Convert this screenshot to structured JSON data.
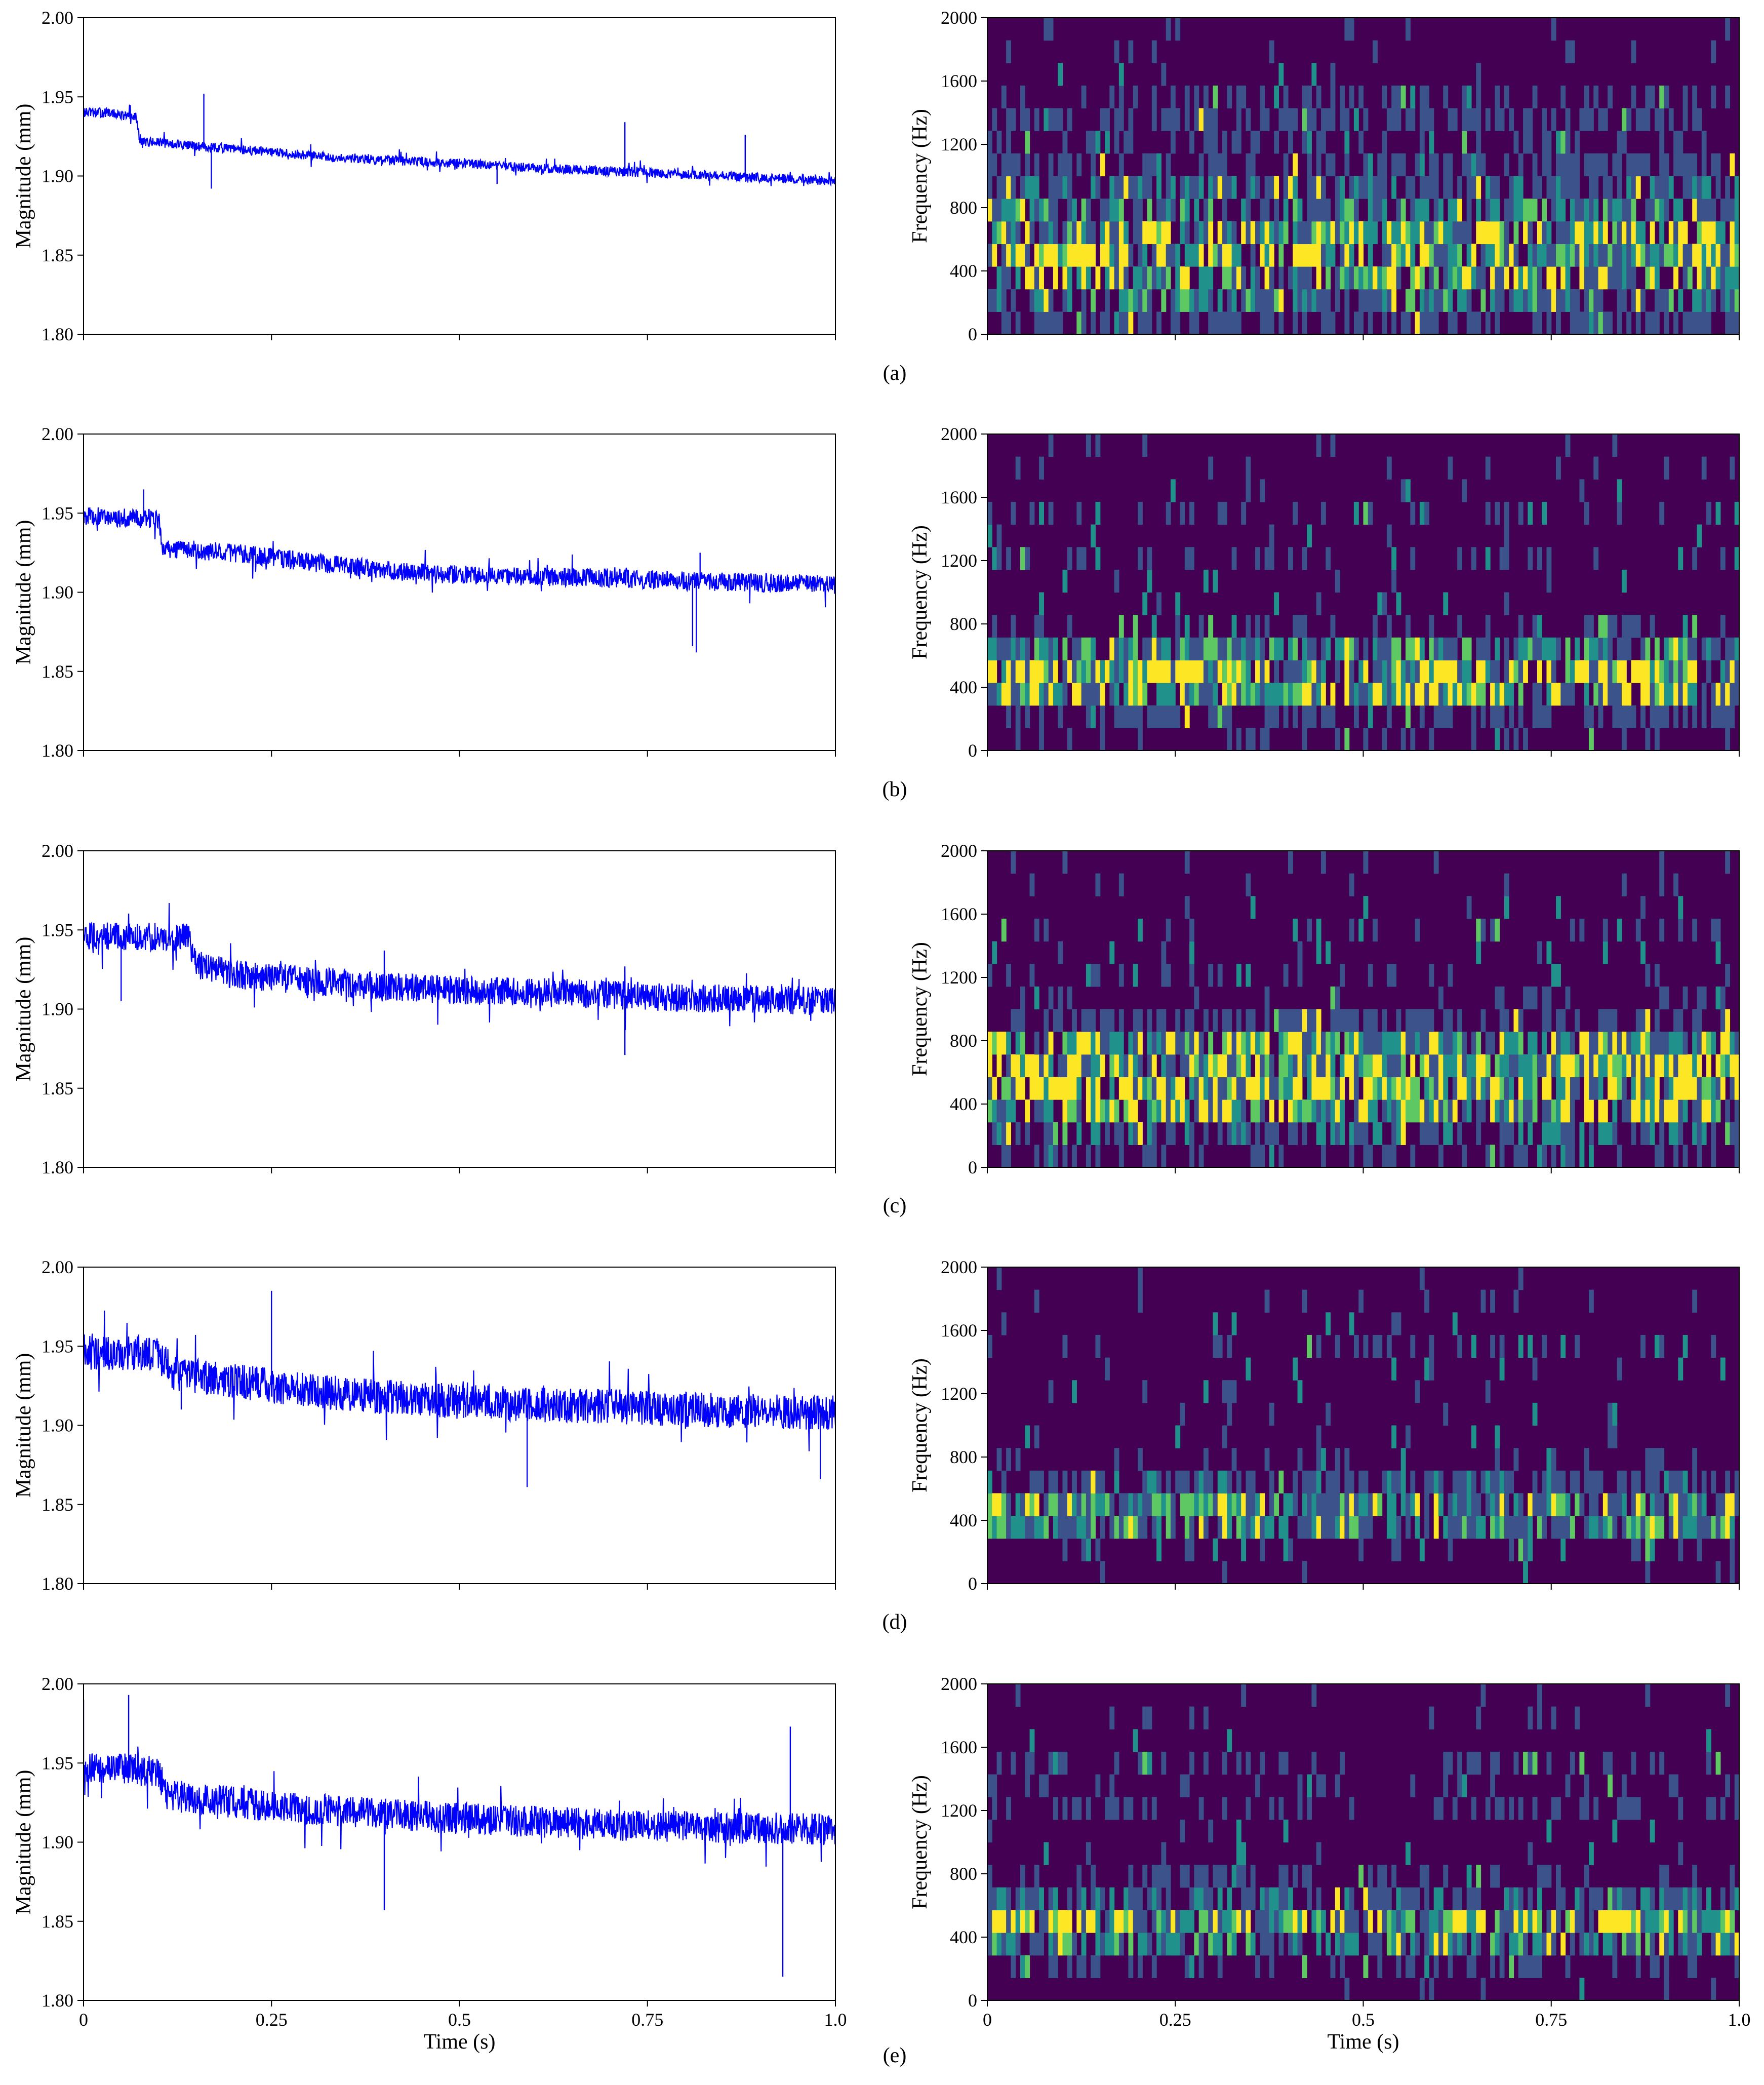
{
  "figure": {
    "panels": [
      "(a)",
      "(b)",
      "(c)",
      "(d)",
      "(e)"
    ]
  },
  "chart_data": [
    {
      "type": "line",
      "panel": "(a)",
      "ylabel": "Magnitude (mm)",
      "xlabel": "",
      "xlim": [
        0,
        1.0
      ],
      "ylim": [
        1.8,
        2.0
      ],
      "yticks": [
        "1.80",
        "1.85",
        "1.90",
        "1.95",
        "2.00"
      ],
      "xticks": [],
      "color": "#0000ff",
      "grid": false,
      "series": [
        {
          "x": [
            0,
            0.03,
            0.07,
            0.075,
            0.1,
            0.2,
            0.3,
            0.4,
            0.5,
            0.6,
            0.7,
            0.8,
            0.9,
            1.0
          ],
          "values": [
            1.94,
            1.94,
            1.937,
            1.922,
            1.921,
            1.917,
            1.913,
            1.91,
            1.908,
            1.905,
            1.903,
            1.901,
            1.899,
            1.897
          ],
          "noise": 0.003,
          "spikes": [
            [
              0.16,
              1.952
            ],
            [
              0.17,
              1.892
            ],
            [
              0.55,
              1.895
            ],
            [
              0.72,
              1.934
            ],
            [
              0.88,
              1.926
            ]
          ]
        }
      ]
    },
    {
      "type": "heatmap",
      "panel": "(a)",
      "ylabel": "Frequency (Hz)",
      "xlabel": "",
      "xlim": [
        0,
        1.0
      ],
      "ylim": [
        0,
        2000
      ],
      "yticks": [
        "0",
        "400",
        "800",
        "1200",
        "1600",
        "2000"
      ],
      "xticks": [],
      "colormap": [
        "#440154",
        "#3b528b",
        "#21918c",
        "#5ec962",
        "#fde725"
      ],
      "frequency_bins": 14,
      "time_bins": 160,
      "band_intensity": [
        0.45,
        0.65,
        0.8,
        0.9,
        0.85,
        0.7,
        0.55,
        0.45,
        0.35,
        0.45,
        0.35,
        0.25,
        0.1,
        0.05
      ]
    },
    {
      "type": "line",
      "panel": "(b)",
      "ylabel": "Magnitude (mm)",
      "xlabel": "",
      "xlim": [
        0,
        1.0
      ],
      "ylim": [
        1.8,
        2.0
      ],
      "yticks": [
        "1.80",
        "1.85",
        "1.90",
        "1.95",
        "2.00"
      ],
      "xticks": [],
      "color": "#0000ff",
      "grid": false,
      "series": [
        {
          "x": [
            0,
            0.05,
            0.1,
            0.105,
            0.2,
            0.3,
            0.4,
            0.5,
            0.6,
            0.7,
            0.8,
            0.9,
            1.0
          ],
          "values": [
            1.948,
            1.947,
            1.946,
            1.928,
            1.925,
            1.919,
            1.914,
            1.911,
            1.91,
            1.909,
            1.907,
            1.906,
            1.905
          ],
          "noise": 0.006,
          "spikes": [
            [
              0.81,
              1.866
            ],
            [
              0.82,
              1.925
            ],
            [
              0.815,
              1.862
            ],
            [
              0.08,
              1.965
            ]
          ]
        }
      ]
    },
    {
      "type": "heatmap",
      "panel": "(b)",
      "ylabel": "Frequency (Hz)",
      "xlabel": "",
      "xlim": [
        0,
        1.0
      ],
      "ylim": [
        0,
        2000
      ],
      "yticks": [
        "0",
        "400",
        "800",
        "1200",
        "1600",
        "2000"
      ],
      "xticks": [],
      "colormap": [
        "#440154",
        "#3b528b",
        "#21918c",
        "#5ec962",
        "#fde725"
      ],
      "frequency_bins": 14,
      "time_bins": 160,
      "band_intensity": [
        0.3,
        0.45,
        0.85,
        0.9,
        0.7,
        0.35,
        0.25,
        0.2,
        0.3,
        0.25,
        0.3,
        0.25,
        0.05,
        0.03
      ]
    },
    {
      "type": "line",
      "panel": "(c)",
      "ylabel": "Magnitude (mm)",
      "xlabel": "",
      "xlim": [
        0,
        1.0
      ],
      "ylim": [
        1.8,
        2.0
      ],
      "yticks": [
        "1.80",
        "1.85",
        "1.90",
        "1.95",
        "2.00"
      ],
      "xticks": [],
      "color": "#0000ff",
      "grid": false,
      "series": [
        {
          "x": [
            0,
            0.05,
            0.14,
            0.15,
            0.2,
            0.3,
            0.4,
            0.5,
            0.6,
            0.7,
            0.8,
            0.9,
            1.0
          ],
          "values": [
            1.946,
            1.946,
            1.945,
            1.928,
            1.922,
            1.918,
            1.914,
            1.912,
            1.911,
            1.909,
            1.907,
            1.906,
            1.905
          ],
          "noise": 0.009,
          "spikes": [
            [
              0.05,
              1.905
            ],
            [
              0.72,
              1.871
            ],
            [
              0.4,
              1.937
            ]
          ]
        }
      ]
    },
    {
      "type": "heatmap",
      "panel": "(c)",
      "ylabel": "Frequency (Hz)",
      "xlabel": "",
      "xlim": [
        0,
        1.0
      ],
      "ylim": [
        0,
        2000
      ],
      "yticks": [
        "0",
        "400",
        "800",
        "1200",
        "1600",
        "2000"
      ],
      "xticks": [],
      "colormap": [
        "#440154",
        "#3b528b",
        "#21918c",
        "#5ec962",
        "#fde725"
      ],
      "frequency_bins": 14,
      "time_bins": 160,
      "band_intensity": [
        0.35,
        0.55,
        0.85,
        0.95,
        0.95,
        0.85,
        0.45,
        0.3,
        0.3,
        0.25,
        0.3,
        0.25,
        0.05,
        0.03
      ]
    },
    {
      "type": "line",
      "panel": "(d)",
      "ylabel": "Magnitude (mm)",
      "xlabel": "",
      "xlim": [
        0,
        1.0
      ],
      "ylim": [
        1.8,
        2.0
      ],
      "yticks": [
        "1.80",
        "1.85",
        "1.90",
        "1.95",
        "2.00"
      ],
      "xticks": [],
      "color": "#0000ff",
      "grid": false,
      "series": [
        {
          "x": [
            0,
            0.05,
            0.1,
            0.12,
            0.2,
            0.3,
            0.4,
            0.5,
            0.6,
            0.7,
            0.8,
            0.9,
            1.0
          ],
          "values": [
            1.946,
            1.946,
            1.944,
            1.933,
            1.928,
            1.922,
            1.918,
            1.915,
            1.913,
            1.912,
            1.91,
            1.909,
            1.908
          ],
          "noise": 0.011,
          "spikes": [
            [
              0.25,
              1.985
            ],
            [
              0.59,
              1.861
            ],
            [
              0.98,
              1.866
            ],
            [
              0.13,
              1.91
            ]
          ]
        }
      ]
    },
    {
      "type": "heatmap",
      "panel": "(d)",
      "ylabel": "Frequency (Hz)",
      "xlabel": "",
      "xlim": [
        0,
        1.0
      ],
      "ylim": [
        0,
        2000
      ],
      "yticks": [
        "0",
        "400",
        "800",
        "1200",
        "1600",
        "2000"
      ],
      "xticks": [],
      "colormap": [
        "#440154",
        "#3b528b",
        "#21918c",
        "#5ec962",
        "#fde725"
      ],
      "frequency_bins": 14,
      "time_bins": 160,
      "band_intensity": [
        0.15,
        0.3,
        0.7,
        0.8,
        0.5,
        0.3,
        0.2,
        0.2,
        0.25,
        0.2,
        0.3,
        0.2,
        0.05,
        0.03
      ]
    },
    {
      "type": "line",
      "panel": "(e)",
      "ylabel": "Magnitude (mm)",
      "xlabel": "Time (s)",
      "xlim": [
        0,
        1.0
      ],
      "ylim": [
        1.8,
        2.0
      ],
      "yticks": [
        "1.80",
        "1.85",
        "1.90",
        "1.95",
        "2.00"
      ],
      "xticks": [
        "0",
        "0.25",
        "0.5",
        "0.75",
        "1.0"
      ],
      "color": "#0000ff",
      "grid": false,
      "series": [
        {
          "x": [
            0,
            0.05,
            0.1,
            0.11,
            0.2,
            0.3,
            0.4,
            0.5,
            0.6,
            0.7,
            0.8,
            0.9,
            1.0
          ],
          "values": [
            1.946,
            1.947,
            1.944,
            1.93,
            1.925,
            1.921,
            1.918,
            1.915,
            1.913,
            1.911,
            1.91,
            1.909,
            1.908
          ],
          "noise": 0.01,
          "spikes": [
            [
              0.0,
              1.99
            ],
            [
              0.06,
              1.993
            ],
            [
              0.93,
              1.815
            ],
            [
              0.94,
              1.973
            ],
            [
              0.4,
              1.857
            ]
          ]
        }
      ]
    },
    {
      "type": "heatmap",
      "panel": "(e)",
      "ylabel": "Frequency (Hz)",
      "xlabel": "Time (s)",
      "xlim": [
        0,
        1.0
      ],
      "ylim": [
        0,
        2000
      ],
      "yticks": [
        "0",
        "400",
        "800",
        "1200",
        "1600",
        "2000"
      ],
      "xticks": [
        "0",
        "0.25",
        "0.5",
        "0.75",
        "1.0"
      ],
      "colormap": [
        "#440154",
        "#3b528b",
        "#21918c",
        "#5ec962",
        "#fde725"
      ],
      "frequency_bins": 14,
      "time_bins": 160,
      "band_intensity": [
        0.2,
        0.35,
        0.7,
        0.85,
        0.6,
        0.35,
        0.25,
        0.25,
        0.35,
        0.3,
        0.35,
        0.25,
        0.05,
        0.03
      ]
    }
  ]
}
